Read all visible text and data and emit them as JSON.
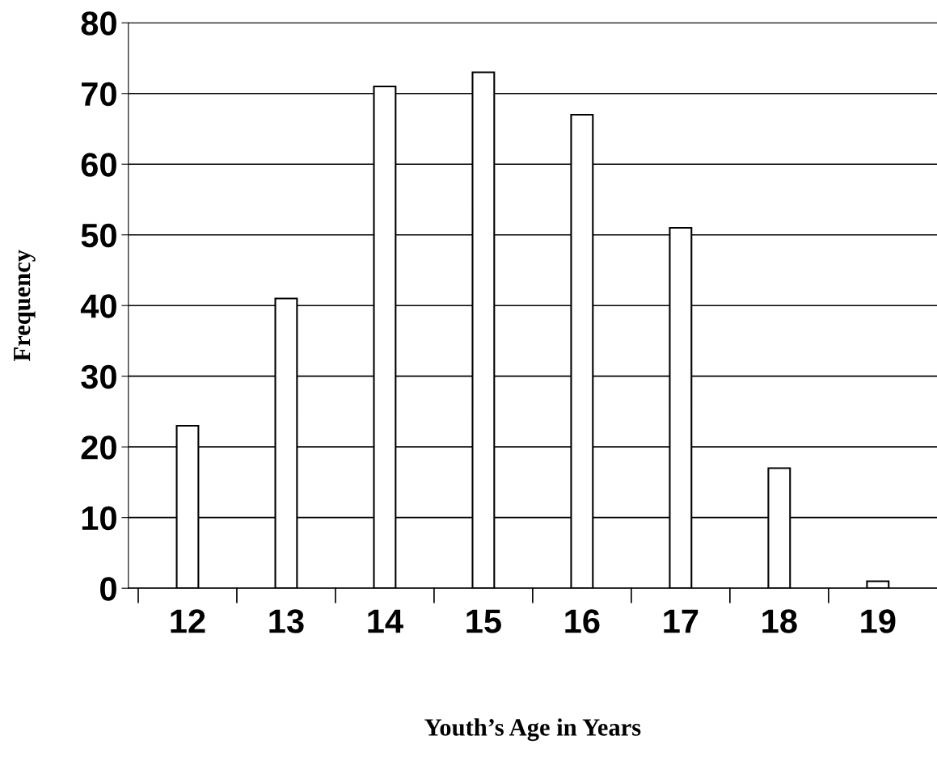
{
  "chart_data": {
    "type": "bar",
    "xlabel": "Youth’s Age in Years",
    "ylabel": "Frequency",
    "categories": [
      "12",
      "13",
      "14",
      "15",
      "16",
      "17",
      "18",
      "19"
    ],
    "values": [
      23,
      41,
      71,
      73,
      67,
      51,
      17,
      1
    ],
    "color": "#ffffff",
    "ylim": [
      0,
      80
    ],
    "yticks": [
      0,
      10,
      20,
      30,
      40,
      50,
      60,
      70,
      80
    ],
    "grid": "y",
    "legend": false
  }
}
